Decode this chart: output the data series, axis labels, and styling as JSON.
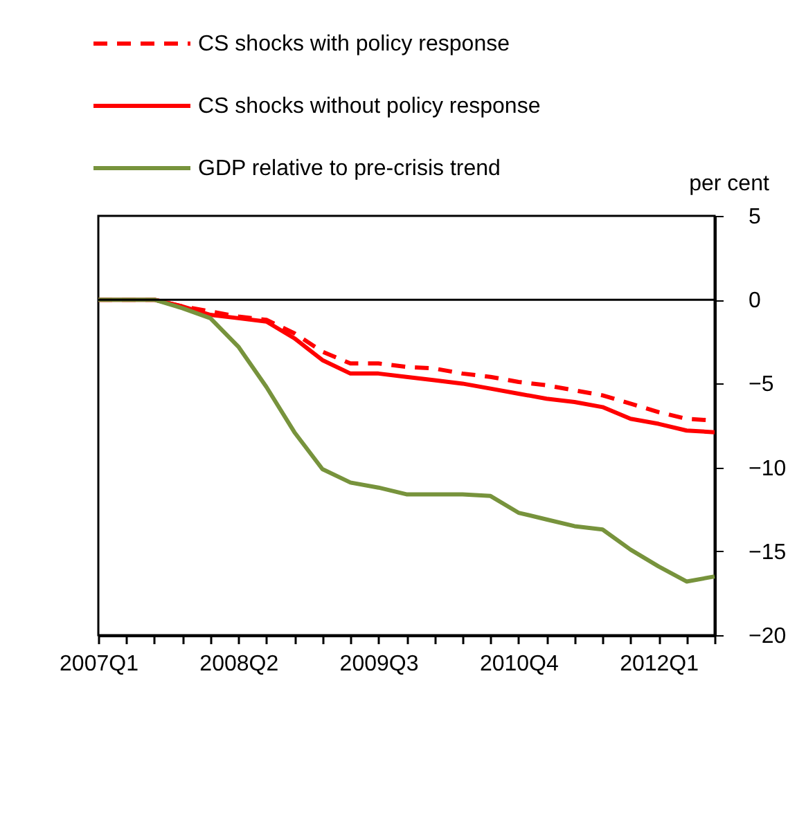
{
  "chart_data": {
    "type": "line",
    "ylabel": "per cent",
    "categories": [
      "2007Q1",
      null,
      null,
      null,
      null,
      "2008Q2",
      null,
      null,
      null,
      null,
      "2009Q3",
      null,
      null,
      null,
      null,
      "2010Q4",
      null,
      null,
      null,
      null,
      "2012Q1",
      null,
      null
    ],
    "series": [
      {
        "name": "CS shocks with policy response",
        "color": "#ff0000",
        "line_style": "dashed",
        "values": [
          0,
          0,
          0,
          -0.4,
          -0.7,
          -1.0,
          -1.2,
          -2.0,
          -3.1,
          -3.8,
          -3.8,
          -4.0,
          -4.1,
          -4.4,
          -4.6,
          -4.9,
          -5.1,
          -5.4,
          -5.7,
          -6.2,
          -6.7,
          -7.1,
          -7.2
        ]
      },
      {
        "name": "CS shocks without policy response",
        "color": "#ff0000",
        "line_style": "solid",
        "values": [
          0,
          0,
          0,
          -0.4,
          -0.9,
          -1.1,
          -1.3,
          -2.3,
          -3.6,
          -4.4,
          -4.4,
          -4.6,
          -4.8,
          -5.0,
          -5.3,
          -5.6,
          -5.9,
          -6.1,
          -6.4,
          -7.1,
          -7.4,
          -7.8,
          -7.9
        ]
      },
      {
        "name": "GDP relative to pre-crisis trend",
        "color": "#77933c",
        "line_style": "solid",
        "values": [
          0,
          0,
          0,
          -0.5,
          -1.1,
          -2.8,
          -5.2,
          -7.9,
          -10.1,
          -10.9,
          -11.2,
          -11.6,
          -11.6,
          -11.6,
          -11.7,
          -12.7,
          -13.1,
          -13.5,
          -13.7,
          -14.9,
          -15.9,
          -16.8,
          -16.5
        ]
      }
    ],
    "ylim": [
      -20,
      5
    ],
    "yticks": [
      -20,
      -15,
      -10,
      -5,
      0,
      5
    ],
    "ref_lines": [
      {
        "axis": "y",
        "value": 0,
        "color": "#000000"
      }
    ],
    "grid": false,
    "legend": "top",
    "marker": "none"
  }
}
